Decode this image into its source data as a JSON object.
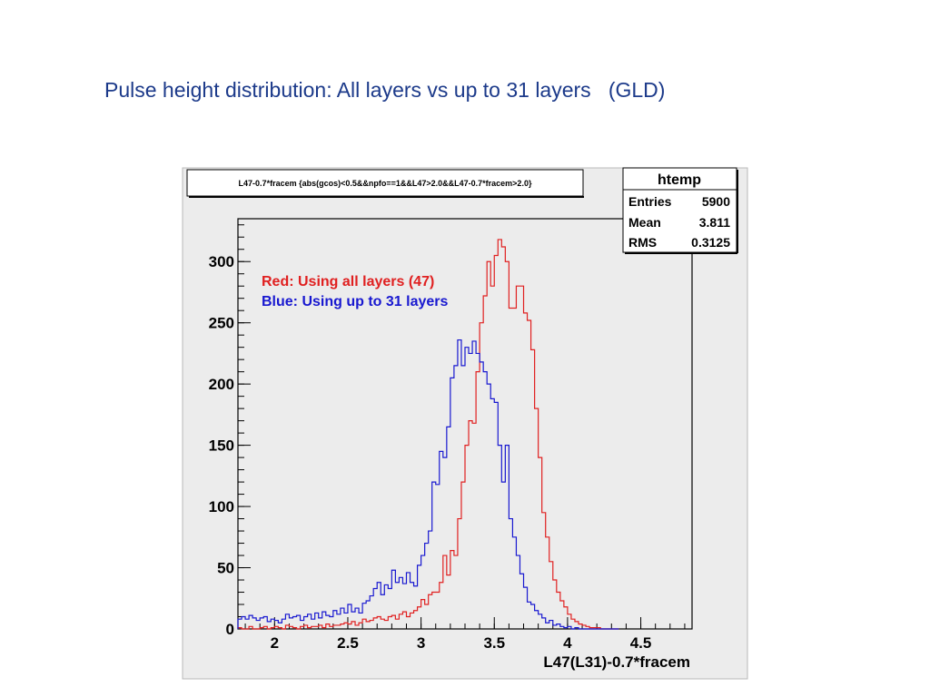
{
  "slide": {
    "title": "Pulse height distribution: All layers vs up to 31 layers   (GLD)"
  },
  "canvas": {
    "cut_label": "L47-0.7*fracem {abs(gcos)<0.5&&npfo==1&&L47>2.0&&L47-0.7*fracem>2.0}"
  },
  "stats_box": {
    "name": "htemp",
    "rows": [
      {
        "label": "Entries",
        "value": "5900"
      },
      {
        "label": "Mean",
        "value": "3.811"
      },
      {
        "label": "RMS",
        "value": "0.3125"
      }
    ]
  },
  "legend_text": {
    "red": "Red: Using all layers (47)",
    "blue": "Blue: Using up to 31 layers"
  },
  "colors": {
    "red": "#e02020",
    "blue": "#1818d0",
    "title": "#1c3a8a",
    "pad_fill": "#ececec"
  },
  "chart_data": {
    "type": "line",
    "step": true,
    "xlabel": "L47(L31)-0.7*fracem",
    "ylabel": "",
    "xlim": [
      1.75,
      4.85
    ],
    "ylim": [
      0,
      335
    ],
    "bin_width": 0.025,
    "x_start": 1.75,
    "xticks": [
      "2",
      "2.5",
      "3",
      "3.5",
      "4",
      "4.5"
    ],
    "yticks": [
      "0",
      "50",
      "100",
      "150",
      "200",
      "250",
      "300"
    ],
    "series": [
      {
        "name": "Red: Using all layers (47)",
        "color": "#e02020",
        "values": [
          1,
          0,
          0,
          2,
          0,
          0,
          1,
          2,
          0,
          1,
          2,
          1,
          0,
          3,
          2,
          1,
          0,
          2,
          3,
          1,
          2,
          2,
          3,
          1,
          4,
          2,
          3,
          3,
          4,
          5,
          4,
          6,
          3,
          5,
          8,
          6,
          7,
          9,
          10,
          8,
          7,
          10,
          11,
          8,
          12,
          14,
          10,
          13,
          15,
          18,
          24,
          20,
          28,
          30,
          30,
          38,
          60,
          44,
          64,
          60,
          90,
          120,
          150,
          170,
          168,
          210,
          250,
          272,
          300,
          280,
          305,
          318,
          312,
          300,
          262,
          262,
          280,
          280,
          258,
          252,
          228,
          180,
          140,
          95,
          75,
          55,
          40,
          30,
          23,
          18,
          12,
          8,
          6,
          4,
          3,
          2,
          1,
          1,
          1,
          0,
          0,
          0,
          0,
          0
        ]
      },
      {
        "name": "Blue: Using up to 31 layers",
        "color": "#1818d0",
        "values": [
          8,
          10,
          8,
          11,
          9,
          7,
          9,
          10,
          6,
          8,
          7,
          5,
          8,
          12,
          9,
          10,
          11,
          7,
          10,
          12,
          8,
          13,
          9,
          14,
          11,
          10,
          15,
          12,
          17,
          13,
          20,
          14,
          17,
          13,
          21,
          23,
          27,
          33,
          38,
          28,
          36,
          33,
          48,
          38,
          42,
          37,
          46,
          38,
          35,
          52,
          60,
          70,
          80,
          120,
          118,
          145,
          140,
          165,
          205,
          215,
          236,
          215,
          230,
          225,
          235,
          225,
          218,
          210,
          200,
          188,
          185,
          150,
          120,
          150,
          90,
          75,
          60,
          45,
          34,
          22,
          20,
          15,
          12,
          9,
          5,
          7,
          3,
          4,
          2,
          1,
          2,
          0,
          1,
          0,
          0,
          0,
          0,
          0,
          0,
          0,
          0,
          0,
          0,
          0
        ]
      }
    ]
  }
}
